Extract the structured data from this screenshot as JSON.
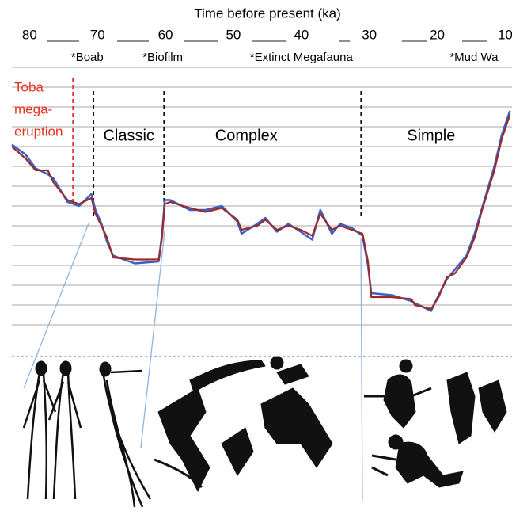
{
  "chart_data": {
    "type": "line",
    "title": "Time before present (ka)",
    "xlim": [
      82.6,
      9
    ],
    "xticks": [
      80,
      70,
      60,
      50,
      40,
      30,
      20,
      10
    ],
    "ylim": [
      0,
      14
    ],
    "yticks": [
      1,
      2,
      3,
      4,
      5,
      6,
      7,
      8,
      9,
      10,
      11,
      12,
      13,
      14
    ],
    "grid": true,
    "x": [
      82.6,
      80.6,
      79.1,
      77.3,
      76.5,
      74.4,
      72.7,
      70.9,
      70.3,
      69.4,
      68.6,
      67.7,
      64.5,
      61.0,
      60.5,
      60.1,
      59.3,
      56.4,
      54.1,
      51.7,
      49.4,
      48.8,
      46.5,
      45.3,
      43.6,
      41.9,
      40.1,
      38.4,
      37.2,
      35.5,
      34.3,
      32.6,
      31.0,
      30.2,
      29.7,
      26.7,
      23.8,
      23.3,
      20.9,
      19.8,
      18.6,
      17.4,
      15.7,
      14.5,
      13.4,
      11.6,
      10.5,
      9.3
    ],
    "series": [
      {
        "color": "#3a5fc4",
        "values": [
          10.1,
          9.6,
          8.9,
          8.6,
          8.4,
          7.2,
          7.0,
          7.6,
          6.8,
          6.1,
          5.2,
          4.5,
          4.1,
          4.2,
          5.6,
          7.3,
          7.3,
          6.8,
          6.8,
          7.0,
          6.2,
          5.6,
          6.1,
          6.4,
          5.7,
          6.1,
          5.7,
          5.3,
          6.8,
          5.6,
          6.1,
          5.9,
          5.5,
          4.0,
          2.6,
          2.5,
          2.2,
          2.1,
          1.7,
          2.5,
          3.3,
          3.8,
          4.5,
          5.6,
          6.9,
          9.0,
          10.6,
          11.8
        ]
      },
      {
        "color": "#9b2a2a",
        "values": [
          10.0,
          9.4,
          8.8,
          8.8,
          8.2,
          7.3,
          7.1,
          7.4,
          6.6,
          6.0,
          5.4,
          4.4,
          4.3,
          4.3,
          5.4,
          7.1,
          7.2,
          6.9,
          6.7,
          6.9,
          6.3,
          5.8,
          6.0,
          6.3,
          5.8,
          6.0,
          5.8,
          5.5,
          6.6,
          5.8,
          6.0,
          5.8,
          5.6,
          4.2,
          2.4,
          2.4,
          2.3,
          2.0,
          1.8,
          2.4,
          3.4,
          3.6,
          4.4,
          5.4,
          6.8,
          8.8,
          10.4,
          11.6
        ]
      }
    ],
    "events": [
      {
        "text": "*Boab",
        "x": 71.5
      },
      {
        "text": "*Biofilm",
        "x": 60.4
      },
      {
        "text": "*Extinct Megafauna",
        "x": 40.0
      },
      {
        "text": "*Mud Wa",
        "x": 14.6
      }
    ],
    "markers": [
      {
        "x": 73.6,
        "color": "#e8321e"
      },
      {
        "x": 70.6,
        "color": "#111111"
      },
      {
        "x": 60.2,
        "color": "#111111"
      },
      {
        "x": 31.2,
        "color": "#111111"
      }
    ],
    "toba": {
      "lines": [
        "Toba",
        "mega-",
        "eruption"
      ],
      "color": "#e8321e"
    },
    "phases": [
      {
        "text": "Classic",
        "x": 65.4
      },
      {
        "text": "Complex",
        "x": 48.1
      },
      {
        "text": "Simple",
        "x": 20.9
      }
    ]
  }
}
